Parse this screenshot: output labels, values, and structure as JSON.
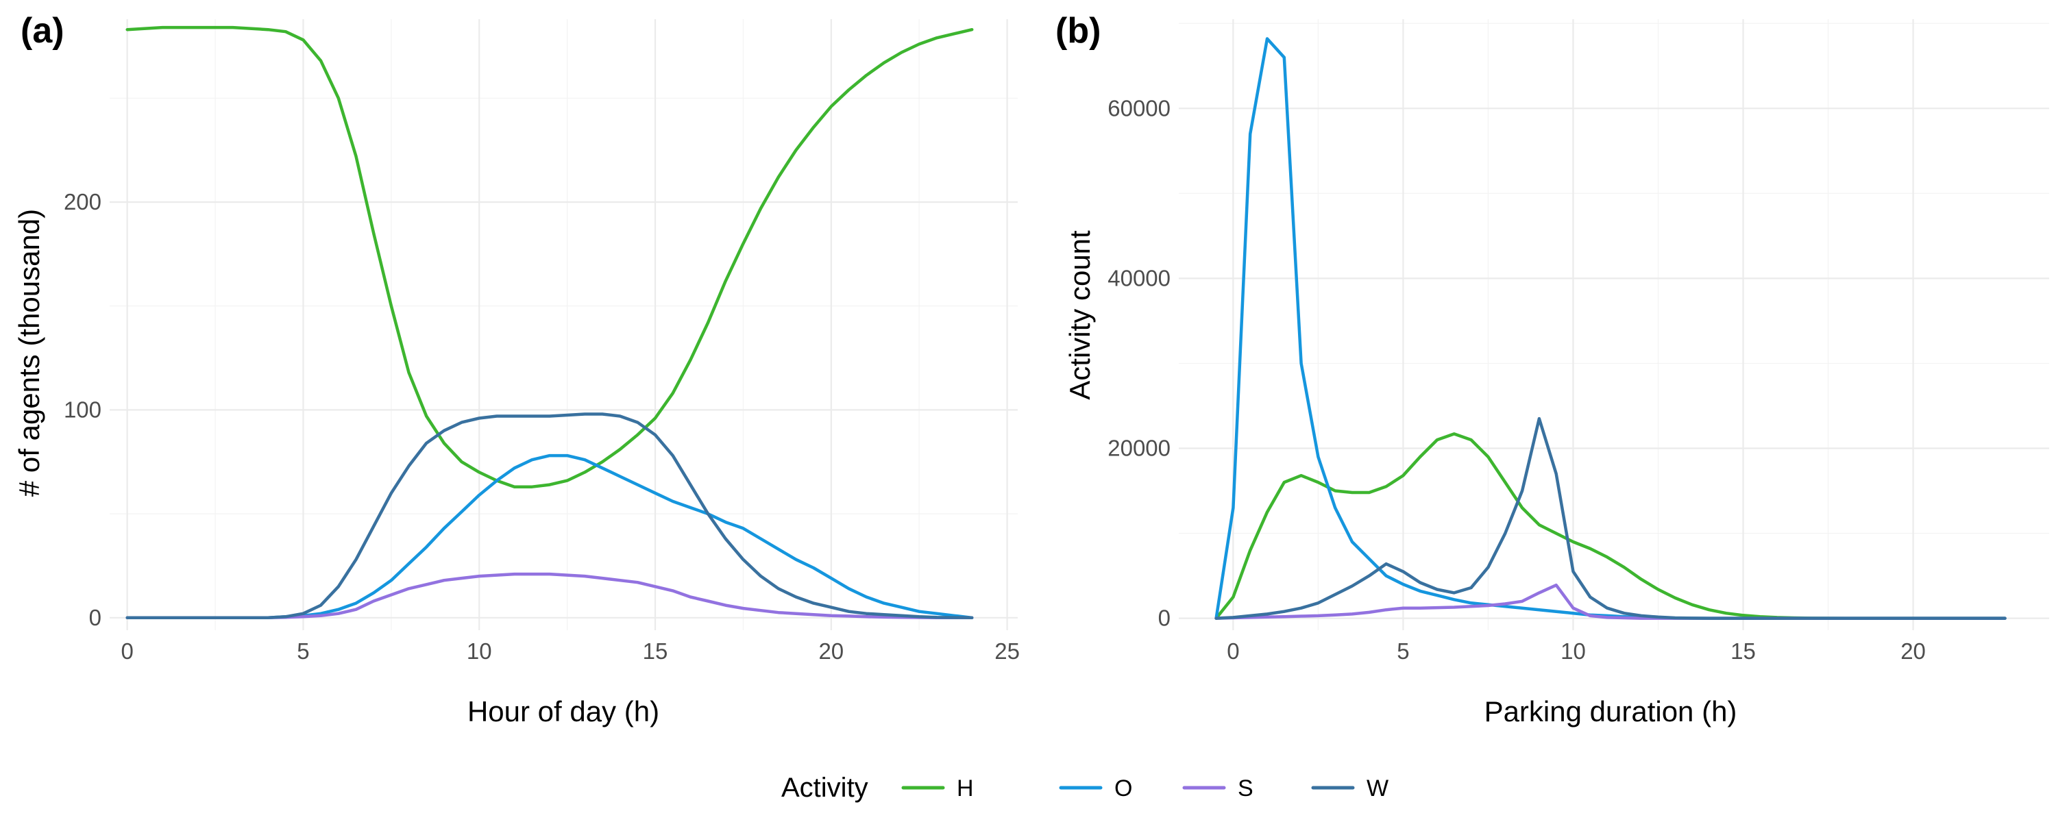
{
  "colors": {
    "H": "#3DB52F",
    "O": "#1596DE",
    "S": "#9272E0",
    "W": "#39719F"
  },
  "legend": {
    "title": "Activity",
    "items": [
      "H",
      "O",
      "S",
      "W"
    ]
  },
  "chart_data": [
    {
      "type": "line",
      "panel_label": "(a)",
      "xlabel": "Hour of day (h)",
      "ylabel": "# of agents (thousand)",
      "xlim": [
        -0.5,
        25.3
      ],
      "ylim": [
        -6,
        288
      ],
      "xticks": [
        0,
        5,
        10,
        15,
        20,
        25
      ],
      "yticks": [
        0,
        100,
        200
      ],
      "grid": true,
      "series": [
        {
          "name": "H",
          "x": [
            0,
            1,
            2,
            3,
            4,
            4.5,
            5,
            5.5,
            6,
            6.5,
            7,
            7.5,
            8,
            8.5,
            9,
            9.5,
            10,
            10.5,
            11,
            11.5,
            12,
            12.5,
            13,
            13.5,
            14,
            14.5,
            15,
            15.5,
            16,
            16.5,
            17,
            17.5,
            18,
            18.5,
            19,
            19.5,
            20,
            20.5,
            21,
            21.5,
            22,
            22.5,
            23,
            23.5,
            24
          ],
          "y": [
            283,
            284,
            284,
            284,
            283,
            282,
            278,
            268,
            250,
            222,
            185,
            150,
            118,
            97,
            84,
            75,
            70,
            66,
            63,
            63,
            64,
            66,
            70,
            75,
            81,
            88,
            96,
            108,
            124,
            142,
            162,
            180,
            197,
            212,
            225,
            236,
            246,
            254,
            261,
            267,
            272,
            276,
            279,
            281,
            283
          ]
        },
        {
          "name": "O",
          "x": [
            0,
            1,
            2,
            3,
            4,
            4.5,
            5,
            5.5,
            6,
            6.5,
            7,
            7.5,
            8,
            8.5,
            9,
            9.5,
            10,
            10.5,
            11,
            11.5,
            12,
            12.5,
            13,
            13.5,
            14,
            14.5,
            15,
            15.5,
            16,
            16.5,
            17,
            17.5,
            18,
            18.5,
            19,
            19.5,
            20,
            20.5,
            21,
            21.5,
            22,
            22.5,
            23,
            23.5,
            24
          ],
          "y": [
            0,
            0,
            0,
            0,
            0,
            0.5,
            1,
            2,
            4,
            7,
            12,
            18,
            26,
            34,
            43,
            51,
            59,
            66,
            72,
            76,
            78,
            78,
            76,
            72,
            68,
            64,
            60,
            56,
            53,
            50,
            46,
            43,
            38,
            33,
            28,
            24,
            19,
            14,
            10,
            7,
            5,
            3,
            2,
            1,
            0
          ]
        },
        {
          "name": "S",
          "x": [
            0,
            1,
            2,
            3,
            4,
            4.5,
            5,
            5.5,
            6,
            6.5,
            7,
            7.5,
            8,
            8.5,
            9,
            9.5,
            10,
            10.5,
            11,
            11.5,
            12,
            12.5,
            13,
            13.5,
            14,
            14.5,
            15,
            15.5,
            16,
            16.5,
            17,
            17.5,
            18,
            18.5,
            19,
            19.5,
            20,
            20.5,
            21,
            21.5,
            22,
            22.5,
            23,
            23.5,
            24
          ],
          "y": [
            0,
            0,
            0,
            0,
            0,
            0.2,
            0.5,
            1,
            2,
            4,
            8,
            11,
            14,
            16,
            18,
            19,
            20,
            20.5,
            21,
            21,
            21,
            20.5,
            20,
            19,
            18,
            17,
            15,
            13,
            10,
            8,
            6,
            4.5,
            3.5,
            2.5,
            2,
            1.5,
            1,
            0.8,
            0.5,
            0.3,
            0.2,
            0.1,
            0,
            0,
            0
          ]
        },
        {
          "name": "W",
          "x": [
            0,
            1,
            2,
            3,
            4,
            4.5,
            5,
            5.5,
            6,
            6.5,
            7,
            7.5,
            8,
            8.5,
            9,
            9.5,
            10,
            10.5,
            11,
            11.5,
            12,
            12.5,
            13,
            13.5,
            14,
            14.5,
            15,
            15.5,
            16,
            16.5,
            17,
            17.5,
            18,
            18.5,
            19,
            19.5,
            20,
            20.5,
            21,
            21.5,
            22,
            22.5,
            23,
            23.5,
            24
          ],
          "y": [
            0,
            0,
            0,
            0,
            0,
            0.5,
            2,
            6,
            15,
            28,
            44,
            60,
            73,
            84,
            90,
            94,
            96,
            97,
            97,
            97,
            97,
            97.5,
            98,
            98,
            97,
            94,
            88,
            78,
            64,
            50,
            38,
            28,
            20,
            14,
            10,
            7,
            5,
            3,
            2,
            1.5,
            1,
            0.5,
            0.2,
            0.1,
            0
          ]
        }
      ]
    },
    {
      "type": "line",
      "panel_label": "(b)",
      "xlabel": "Parking duration (h)",
      "ylabel": "Activity count",
      "xlim": [
        -1.6,
        24.0
      ],
      "ylim": [
        -1400,
        70500
      ],
      "xticks": [
        0,
        5,
        10,
        15,
        20
      ],
      "yticks": [
        0,
        20000,
        40000,
        60000
      ],
      "grid": true,
      "series": [
        {
          "name": "H",
          "x": [
            -0.5,
            0,
            0.5,
            1,
            1.5,
            2,
            2.5,
            3,
            3.5,
            4,
            4.5,
            5,
            5.5,
            6,
            6.5,
            7,
            7.5,
            8,
            8.5,
            9,
            9.5,
            10,
            10.5,
            11,
            11.5,
            12,
            12.5,
            13,
            13.5,
            14,
            14.5,
            15,
            15.5,
            16,
            16.5,
            17,
            17.5,
            18,
            19,
            20,
            21,
            22,
            22.7
          ],
          "y": [
            0,
            2500,
            8000,
            12500,
            16000,
            16800,
            16000,
            15000,
            14800,
            14800,
            15500,
            16800,
            19000,
            21000,
            21700,
            21000,
            19000,
            16000,
            13000,
            11000,
            10000,
            9000,
            8200,
            7200,
            6000,
            4600,
            3400,
            2400,
            1600,
            1000,
            600,
            350,
            200,
            100,
            50,
            20,
            10,
            5,
            0,
            0,
            0,
            0,
            0
          ]
        },
        {
          "name": "O",
          "x": [
            -0.5,
            0,
            0.5,
            1,
            1.5,
            2,
            2.5,
            3,
            3.5,
            4,
            4.5,
            5,
            5.5,
            6,
            6.5,
            7,
            7.5,
            8,
            8.5,
            9,
            9.5,
            10,
            10.5,
            11,
            11.5,
            12,
            12.5,
            13,
            13.5,
            14,
            15,
            16,
            17,
            18,
            19,
            20,
            21,
            22,
            22.7
          ],
          "y": [
            0,
            13000,
            57000,
            68200,
            66000,
            30000,
            19000,
            13000,
            9000,
            7000,
            5000,
            4000,
            3200,
            2700,
            2200,
            1800,
            1600,
            1400,
            1200,
            1000,
            800,
            600,
            400,
            300,
            200,
            100,
            50,
            20,
            10,
            0,
            0,
            0,
            0,
            0,
            0,
            0,
            0,
            0,
            0
          ]
        },
        {
          "name": "S",
          "x": [
            -0.5,
            0,
            0.5,
            1,
            1.5,
            2,
            2.5,
            3,
            3.5,
            4,
            4.5,
            5,
            5.5,
            6,
            6.5,
            7,
            7.5,
            8,
            8.5,
            9,
            9.5,
            10,
            10.5,
            11,
            11.5,
            12,
            13,
            14,
            15,
            16,
            17,
            18,
            19,
            20,
            21,
            22,
            22.7
          ],
          "y": [
            0,
            50,
            100,
            150,
            200,
            250,
            300,
            400,
            500,
            700,
            1000,
            1200,
            1200,
            1250,
            1300,
            1400,
            1500,
            1700,
            2000,
            3000,
            3900,
            1200,
            300,
            100,
            50,
            0,
            0,
            0,
            0,
            0,
            0,
            0,
            0,
            0,
            0,
            0,
            0
          ]
        },
        {
          "name": "W",
          "x": [
            -0.5,
            0,
            0.5,
            1,
            1.5,
            2,
            2.5,
            3,
            3.5,
            4,
            4.5,
            5,
            5.5,
            6,
            6.5,
            7,
            7.5,
            8,
            8.5,
            9,
            9.5,
            10,
            10.5,
            11,
            11.5,
            12,
            12.5,
            13,
            13.5,
            14,
            15,
            16,
            17,
            18,
            19,
            20,
            21,
            22,
            22.7
          ],
          "y": [
            0,
            100,
            300,
            500,
            800,
            1200,
            1800,
            2800,
            3800,
            5000,
            6400,
            5500,
            4200,
            3400,
            3000,
            3600,
            6000,
            10000,
            15000,
            23500,
            17000,
            5500,
            2500,
            1200,
            600,
            300,
            150,
            50,
            20,
            0,
            0,
            0,
            0,
            0,
            0,
            0,
            0,
            0,
            0
          ]
        }
      ]
    }
  ]
}
